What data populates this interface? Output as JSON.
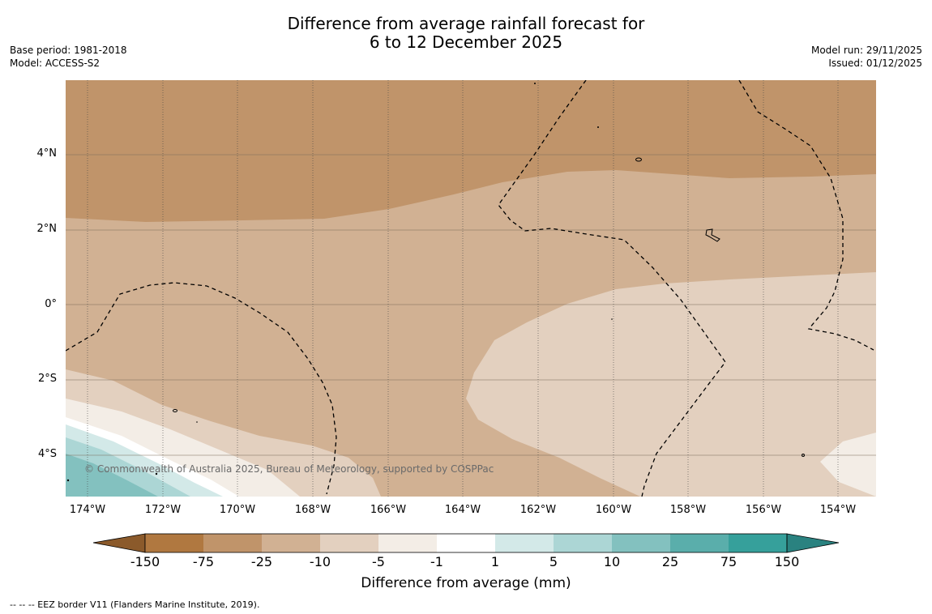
{
  "title": {
    "line1": "Difference from average rainfall forecast for",
    "line2": "6 to 12 December 2025"
  },
  "meta_left": {
    "base_period": "Base period: 1981-2018",
    "model": "Model: ACCESS-S2"
  },
  "meta_right": {
    "model_run": "Model run: 29/11/2025",
    "issued": "Issued: 01/12/2025"
  },
  "map": {
    "lat_labels": [
      "4°N",
      "2°N",
      "0°",
      "2°S",
      "4°S"
    ],
    "lon_labels": [
      "174°W",
      "172°W",
      "170°W",
      "168°W",
      "166°W",
      "164°W",
      "162°W",
      "160°W",
      "158°W",
      "156°W",
      "154°W"
    ],
    "copyright": "© Commonwealth of Australia 2025, Bureau of Meteorology, supported by COSPPac"
  },
  "colorbar": {
    "labels": [
      "-150",
      "-75",
      "-25",
      "-10",
      "-5",
      "-1",
      "1",
      "5",
      "10",
      "25",
      "75",
      "150"
    ],
    "colors": [
      "#8b5a2b",
      "#b07840",
      "#c0946a",
      "#d1b193",
      "#e3d0bf",
      "#f3ede6",
      "#ffffff",
      "#d3e9e8",
      "#acd6d5",
      "#83c1bf",
      "#5aaeab",
      "#36a09b",
      "#2a8280"
    ],
    "title": "Difference from average (mm)"
  },
  "legend_note": "--  --  -- EEZ border V11 (Flanders Marine Institute, 2019)."
}
